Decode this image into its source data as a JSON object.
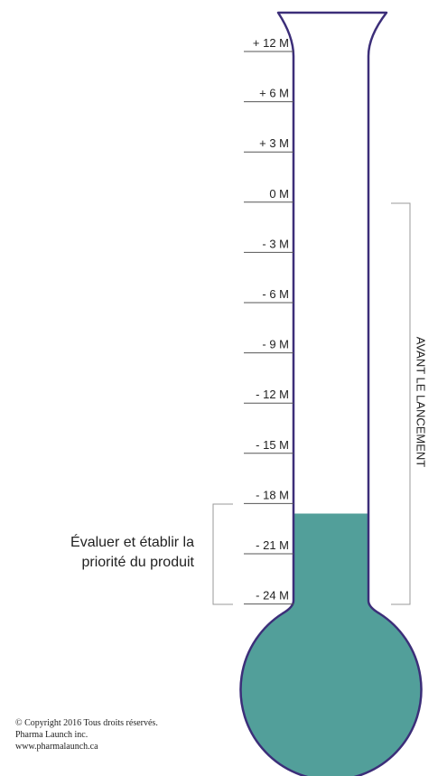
{
  "scale": {
    "ticks": [
      "+ 12 M",
      "+ 6 M",
      "+ 3 M",
      "0 M",
      "- 3 M",
      "- 6 M",
      "- 9 M",
      "- 12 M",
      "- 15 M",
      "- 18 M",
      "- 21 M",
      "- 24 M"
    ],
    "fill_level_tick_index": 9.2
  },
  "phase": {
    "text_line1": "Évaluer et établir la",
    "text_line2": "priorité du produit"
  },
  "bracket_label": "AVANT LE LANCEMENT",
  "colors": {
    "liquid": "#529f9a",
    "glass_outline": "#3c2e79",
    "bracket": "#999999",
    "tick_line": "#555555"
  },
  "footer": {
    "line1": "© Copyright 2016 Tous droits réservés.",
    "line2": "Pharma Launch inc.",
    "line3": "www.pharmalaunch.ca"
  }
}
